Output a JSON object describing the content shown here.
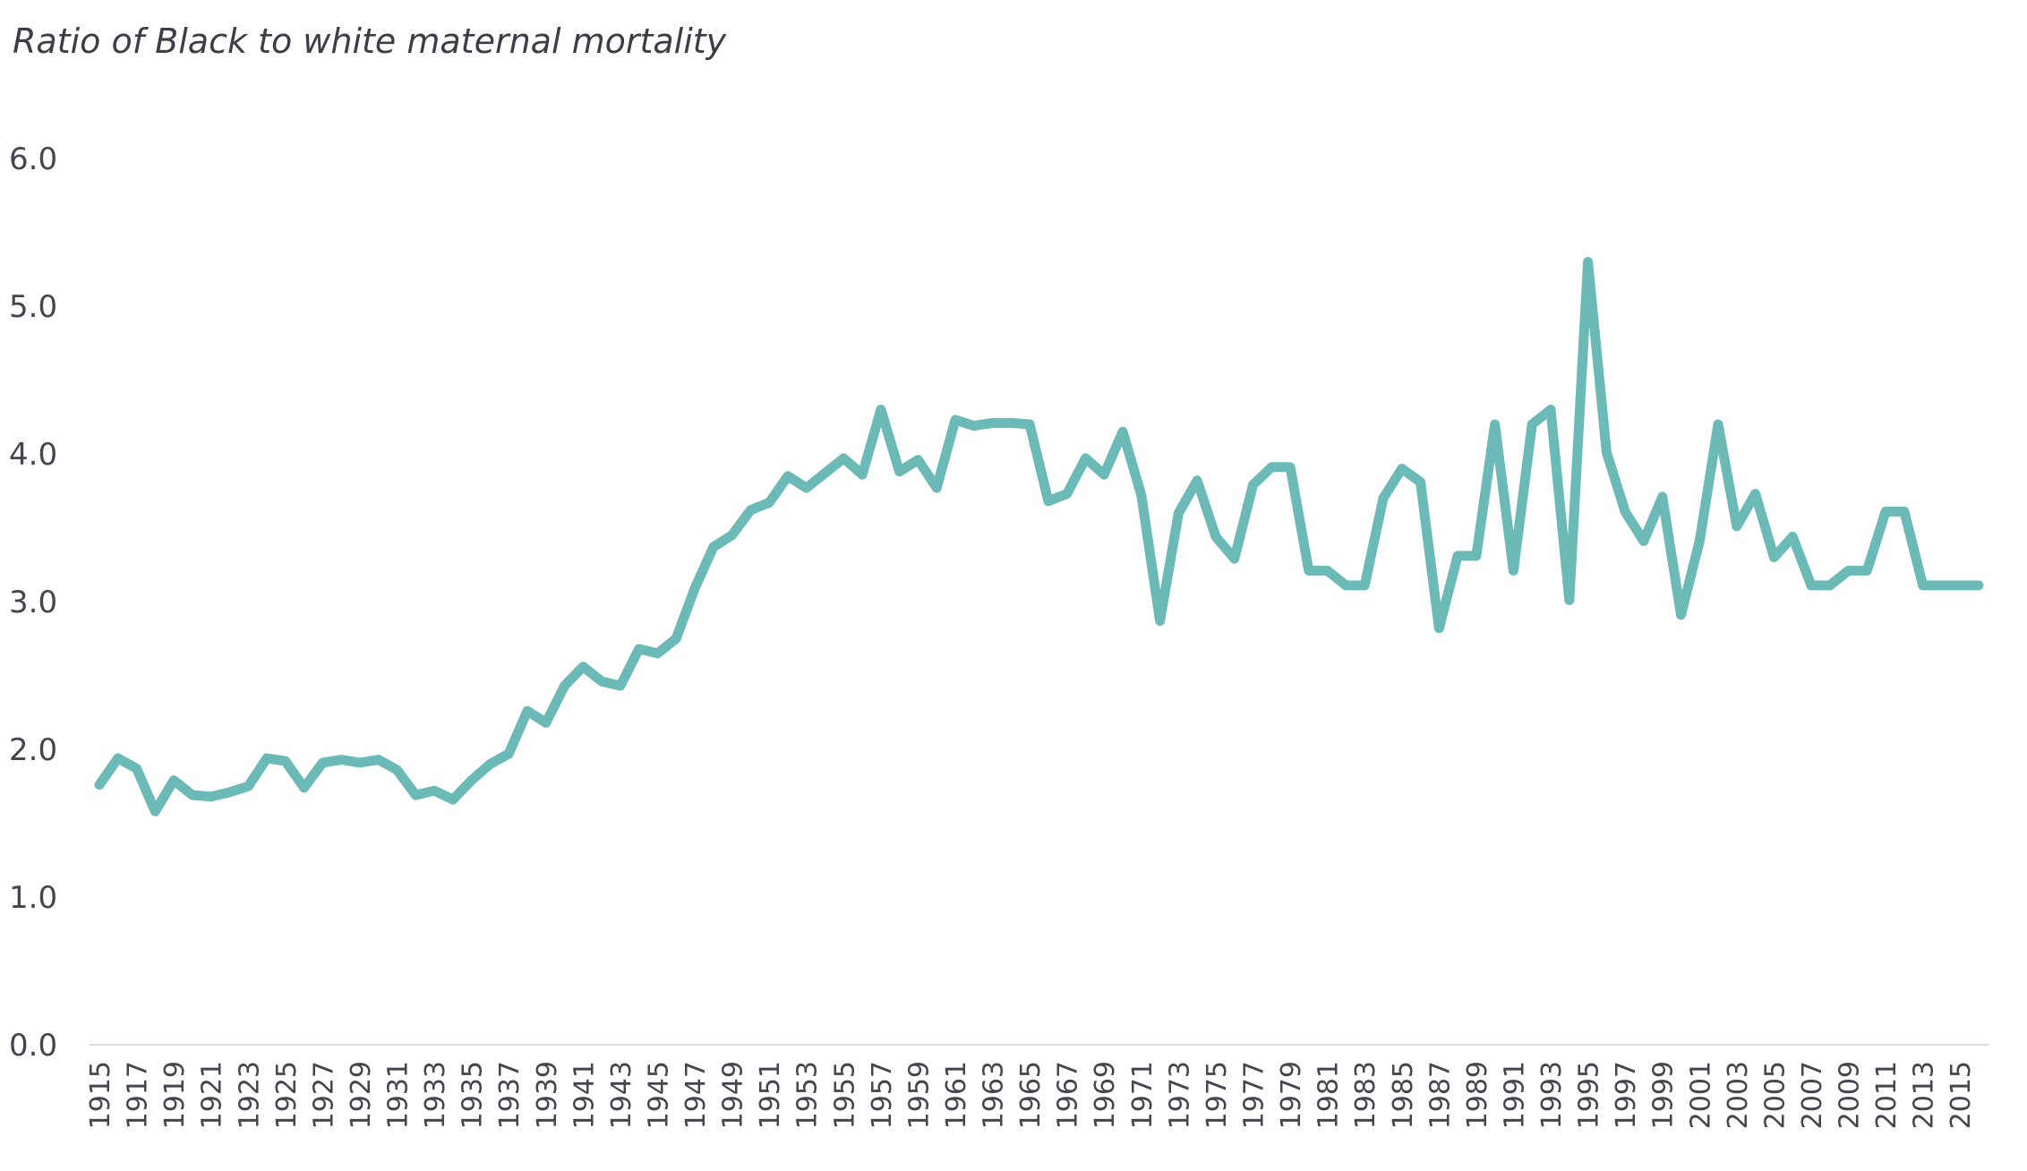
{
  "chart_data": {
    "type": "line",
    "title": "Ratio of Black to white maternal mortality",
    "xlabel": "",
    "ylabel": "",
    "ylim": [
      0,
      6
    ],
    "yticks": [
      "0.0",
      "1.0",
      "2.0",
      "3.0",
      "4.0",
      "5.0",
      "6.0"
    ],
    "grid": false,
    "line_color": "#6bbab7",
    "x": [
      1915,
      1916,
      1917,
      1918,
      1919,
      1920,
      1921,
      1922,
      1923,
      1924,
      1925,
      1926,
      1927,
      1928,
      1929,
      1930,
      1931,
      1932,
      1933,
      1934,
      1935,
      1936,
      1937,
      1938,
      1939,
      1940,
      1941,
      1942,
      1943,
      1944,
      1945,
      1946,
      1947,
      1948,
      1949,
      1950,
      1951,
      1952,
      1953,
      1954,
      1955,
      1956,
      1957,
      1958,
      1959,
      1960,
      1961,
      1962,
      1963,
      1964,
      1965,
      1966,
      1967,
      1968,
      1969,
      1970,
      1971,
      1972,
      1973,
      1974,
      1975,
      1976,
      1977,
      1978,
      1979,
      1980,
      1981,
      1982,
      1983,
      1984,
      1985,
      1986,
      1987,
      1988,
      1989,
      1990,
      1991,
      1992,
      1993,
      1994,
      1995,
      1996,
      1997,
      1998,
      1999,
      2000,
      2001,
      2002,
      2003,
      2004,
      2005,
      2006,
      2007,
      2008,
      2009,
      2010,
      2011,
      2012,
      2013,
      2014,
      2015,
      2016
    ],
    "xtick_labels": [
      "1915",
      "1917",
      "1919",
      "1921",
      "1923",
      "1925",
      "1927",
      "1929",
      "1931",
      "1933",
      "1935",
      "1937",
      "1939",
      "1941",
      "1943",
      "1945",
      "1947",
      "1949",
      "1951",
      "1953",
      "1955",
      "1957",
      "1959",
      "1961",
      "1963",
      "1965",
      "1967",
      "1969",
      "1971",
      "1973",
      "1975",
      "1977",
      "1979",
      "1981",
      "1983",
      "1985",
      "1987",
      "1989",
      "1991",
      "1993",
      "1995",
      "1997",
      "1999",
      "2001",
      "2003",
      "2005",
      "2007",
      "2009",
      "2011",
      "2013",
      "2015"
    ],
    "series": [
      {
        "values": [
          1.76,
          1.94,
          1.87,
          1.58,
          1.79,
          1.69,
          1.68,
          1.71,
          1.75,
          1.94,
          1.92,
          1.74,
          1.91,
          1.93,
          1.91,
          1.93,
          1.86,
          1.69,
          1.72,
          1.66,
          1.79,
          1.9,
          1.97,
          2.26,
          2.18,
          2.43,
          2.56,
          2.46,
          2.43,
          2.68,
          2.65,
          2.75,
          3.09,
          3.37,
          3.45,
          3.62,
          3.67,
          3.85,
          3.77,
          3.87,
          3.97,
          3.86,
          4.3,
          3.88,
          3.96,
          3.77,
          4.23,
          4.19,
          4.21,
          4.21,
          4.2,
          3.68,
          3.73,
          3.97,
          3.86,
          4.15,
          3.72,
          2.87,
          3.6,
          3.82,
          3.44,
          3.29,
          3.79,
          3.91,
          3.91,
          3.21,
          3.21,
          3.11,
          3.11,
          3.7,
          3.9,
          3.81,
          2.82,
          3.31,
          3.31,
          4.2,
          3.21,
          4.2,
          4.3,
          3.01,
          5.3,
          4.01,
          3.61,
          3.41,
          3.71,
          2.91,
          3.41,
          4.2,
          3.51,
          3.73,
          3.3,
          3.44,
          3.11,
          3.11,
          3.21,
          3.21,
          3.61,
          3.61,
          3.11,
          3.11,
          3.11,
          3.11
        ]
      }
    ]
  }
}
